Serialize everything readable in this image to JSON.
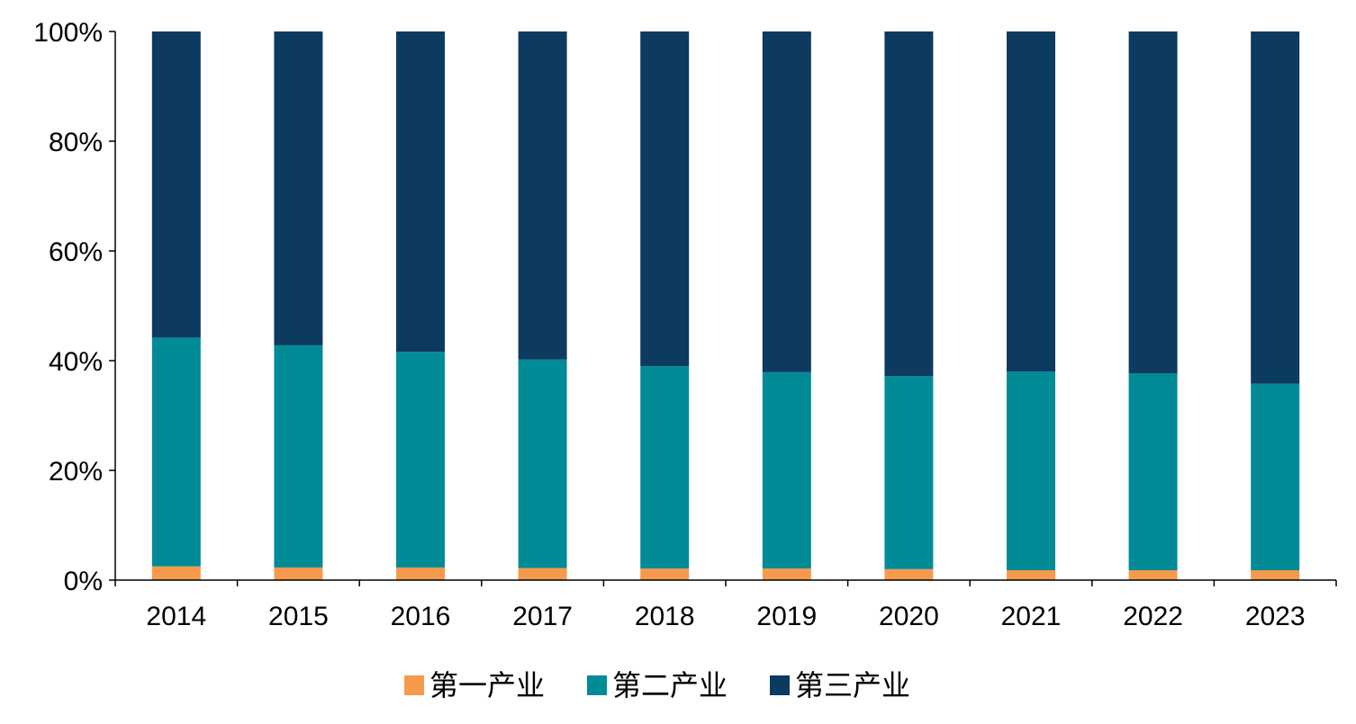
{
  "chart_data": {
    "type": "bar",
    "stacked": true,
    "percent_stacked": true,
    "categories": [
      "2014",
      "2015",
      "2016",
      "2017",
      "2018",
      "2019",
      "2020",
      "2021",
      "2022",
      "2023"
    ],
    "series": [
      {
        "name": "第一产业",
        "color": "#F59A4C",
        "values": [
          2.5,
          2.3,
          2.3,
          2.2,
          2.1,
          2.1,
          2.0,
          1.8,
          1.8,
          1.8
        ]
      },
      {
        "name": "第二产业",
        "color": "#008B96",
        "values": [
          41.7,
          40.5,
          39.3,
          38.0,
          36.9,
          35.8,
          35.2,
          36.2,
          35.9,
          34.0
        ]
      },
      {
        "name": "第三产业",
        "color": "#0D3A5F",
        "values": [
          55.8,
          57.2,
          58.4,
          59.8,
          61.0,
          62.1,
          62.8,
          62.0,
          62.3,
          64.2
        ]
      }
    ],
    "y_ticks": [
      "0%",
      "20%",
      "40%",
      "60%",
      "80%",
      "100%"
    ],
    "ylim": [
      0,
      100
    ],
    "title": "",
    "xlabel": "",
    "ylabel": "",
    "grid": false,
    "legend_position": "bottom"
  }
}
